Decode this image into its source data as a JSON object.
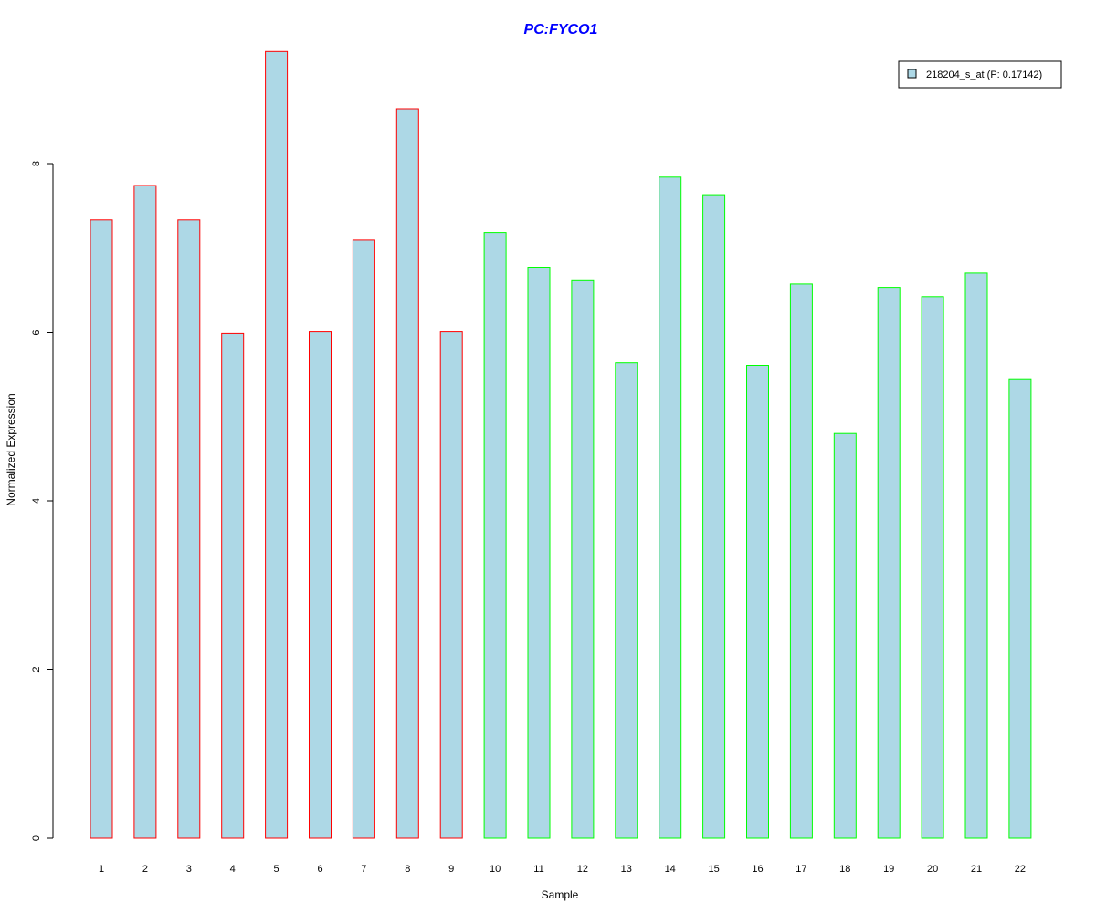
{
  "chart_data": {
    "type": "bar",
    "title": "PC:FYCO1",
    "xlabel": "Sample",
    "ylabel": "Normalized Expression",
    "categories": [
      "1",
      "2",
      "3",
      "4",
      "5",
      "6",
      "7",
      "8",
      "9",
      "10",
      "11",
      "12",
      "13",
      "14",
      "15",
      "16",
      "17",
      "18",
      "19",
      "20",
      "21",
      "22"
    ],
    "values": [
      7.33,
      7.74,
      7.33,
      5.99,
      9.33,
      6.01,
      7.09,
      8.65,
      6.01,
      7.18,
      6.77,
      6.62,
      5.64,
      7.84,
      7.63,
      5.61,
      6.57,
      4.8,
      6.53,
      6.42,
      6.7,
      5.44
    ],
    "group": [
      "a",
      "a",
      "a",
      "a",
      "a",
      "a",
      "a",
      "a",
      "a",
      "b",
      "b",
      "b",
      "b",
      "b",
      "b",
      "b",
      "b",
      "b",
      "b",
      "b",
      "b",
      "b"
    ],
    "yticks": [
      0,
      2,
      4,
      6,
      8
    ],
    "ylim": [
      0,
      9.33
    ],
    "grid": false,
    "legend": {
      "position": "top-right",
      "entries": [
        {
          "label": "218204_s_at (P: 0.17142)",
          "color": "#add8e6"
        }
      ]
    },
    "colors": {
      "fill": "#add8e6",
      "border_group_a": "#ff0000",
      "border_group_b": "#00ff00",
      "title": "#0000ff"
    }
  }
}
